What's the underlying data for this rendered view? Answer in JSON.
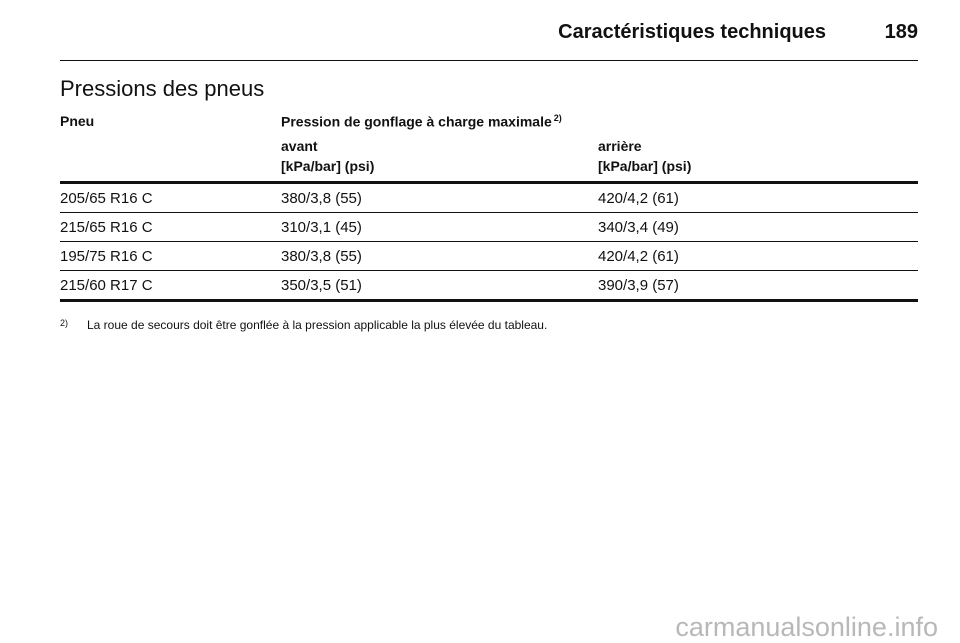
{
  "header": {
    "title": "Caractéristiques techniques",
    "page": "189"
  },
  "section_title": "Pressions des pneus",
  "table": {
    "header": {
      "tyre": "Pneu",
      "pressure": "Pression de gonflage à charge maximale",
      "footnote_ref": "2)",
      "front": "avant",
      "front_unit": "[kPa/bar] (psi)",
      "rear": "arrière",
      "rear_unit": "[kPa/bar] (psi)"
    },
    "rows": [
      [
        "205/65 R16 C",
        "380/3,8 (55)",
        "420/4,2 (61)"
      ],
      [
        "215/65 R16 C",
        "310/3,1 (45)",
        "340/3,4 (49)"
      ],
      [
        "195/75 R16 C",
        "380/3,8 (55)",
        "420/4,2 (61)"
      ],
      [
        "215/60 R17 C",
        "350/3,5 (51)",
        "390/3,9 (57)"
      ]
    ]
  },
  "footnote": {
    "marker": "2)",
    "text": "La roue de secours doit être gonflée à la pression applicable la plus élevée du tableau."
  },
  "watermark": "carmanualsonline.info"
}
